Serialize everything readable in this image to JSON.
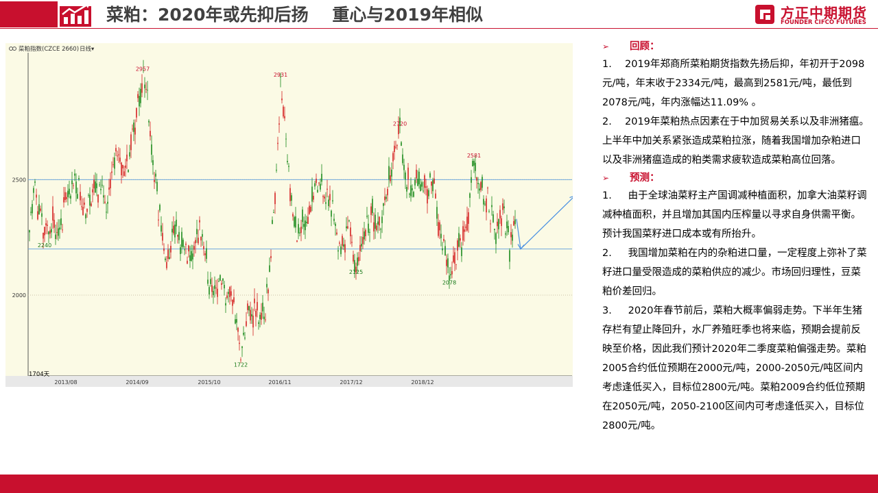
{
  "header": {
    "title": "菜粕：2020年或先抑后扬    重心与2019年相似",
    "logo_cn": "方正中期期货",
    "logo_en": "FOUNDER CIFCO FUTURES",
    "accent_color": "#c8102e"
  },
  "chart_toolbar": {
    "name": "菜粕指数(CZCE 2660)",
    "period": "日线",
    "period_caret": "▾",
    "day_count": "1704天"
  },
  "chart_data": {
    "type": "candlestick",
    "title": "菜粕指数(CZCE 2660)",
    "ylim": [
      1650,
      3050
    ],
    "y_ticks": [
      2000,
      2500
    ],
    "x_ticks": [
      "2013/08",
      "2014/09",
      "2015/10",
      "2016/11",
      "2017/12",
      "2018/12"
    ],
    "horizontal_lines": [
      2500,
      2200
    ],
    "annotated_extremes": [
      {
        "label": "2957",
        "value": 2957,
        "kind": "high",
        "date": "2014/05"
      },
      {
        "label": "2240",
        "value": 2240,
        "kind": "low",
        "date": "2013/06"
      },
      {
        "label": "2931",
        "value": 2931,
        "kind": "high",
        "date": "2016/06"
      },
      {
        "label": "1722",
        "value": 1722,
        "kind": "low",
        "date": "2015/09"
      },
      {
        "label": "2125",
        "value": 2125,
        "kind": "low",
        "date": "2017/03"
      },
      {
        "label": "2720",
        "value": 2720,
        "kind": "high",
        "date": "2018/04"
      },
      {
        "label": "2078",
        "value": 2078,
        "kind": "low",
        "date": "2019/03"
      },
      {
        "label": "2581",
        "value": 2581,
        "kind": "high",
        "date": "2019/05"
      }
    ],
    "outline": [
      [
        0,
        2330
      ],
      [
        8,
        2480
      ],
      [
        12,
        2380
      ],
      [
        22,
        2240
      ],
      [
        32,
        2330
      ],
      [
        40,
        2260
      ],
      [
        55,
        2450
      ],
      [
        68,
        2480
      ],
      [
        82,
        2350
      ],
      [
        100,
        2480
      ],
      [
        112,
        2420
      ],
      [
        125,
        2600
      ],
      [
        140,
        2550
      ],
      [
        152,
        2700
      ],
      [
        165,
        2957
      ],
      [
        172,
        2880
      ],
      [
        182,
        2500
      ],
      [
        192,
        2300
      ],
      [
        200,
        2120
      ],
      [
        212,
        2300
      ],
      [
        222,
        2200
      ],
      [
        236,
        2150
      ],
      [
        248,
        2300
      ],
      [
        262,
        2060
      ],
      [
        276,
        2050
      ],
      [
        290,
        2000
      ],
      [
        300,
        1950
      ],
      [
        308,
        1722
      ],
      [
        318,
        1900
      ],
      [
        330,
        1930
      ],
      [
        342,
        1880
      ],
      [
        352,
        2180
      ],
      [
        360,
        2550
      ],
      [
        366,
        2931
      ],
      [
        374,
        2700
      ],
      [
        382,
        2400
      ],
      [
        392,
        2250
      ],
      [
        404,
        2350
      ],
      [
        414,
        2420
      ],
      [
        426,
        2500
      ],
      [
        440,
        2380
      ],
      [
        454,
        2180
      ],
      [
        464,
        2300
      ],
      [
        476,
        2125
      ],
      [
        488,
        2280
      ],
      [
        498,
        2350
      ],
      [
        512,
        2330
      ],
      [
        524,
        2480
      ],
      [
        534,
        2650
      ],
      [
        540,
        2720
      ],
      [
        548,
        2500
      ],
      [
        560,
        2480
      ],
      [
        574,
        2450
      ],
      [
        588,
        2500
      ],
      [
        600,
        2250
      ],
      [
        612,
        2078
      ],
      [
        622,
        2200
      ],
      [
        636,
        2250
      ],
      [
        648,
        2581
      ],
      [
        656,
        2470
      ],
      [
        668,
        2400
      ],
      [
        680,
        2250
      ],
      [
        690,
        2380
      ],
      [
        700,
        2200
      ],
      [
        708,
        2320
      ]
    ],
    "projection": [
      [
        710,
        2330
      ],
      [
        716,
        2200
      ],
      [
        795,
        2430
      ]
    ]
  },
  "panel": {
    "review_title": "回顾：",
    "review_items": [
      {
        "num": "1.",
        "text": "2019年郑商所菜粕期货指数先扬后抑，年初开于2098元/吨，年末收于2334元/吨，最高到2581元/吨，最低到2078元/吨，年内涨幅达11.09% 。"
      },
      {
        "num": "2.",
        "text": "2019年菜粕热点因素在于中加贸易关系以及非洲猪瘟。上半年中加关系紧张造成菜粕拉涨，随着我国增加杂粕进口以及非洲猪瘟造成的粕类需求疲软造成菜粕高位回落。"
      }
    ],
    "forecast_title": "预测：",
    "forecast_items": [
      {
        "num": "1.",
        "text": " 由于全球油菜籽主产国调减种植面积，加拿大油菜籽调减种植面积，并且增加其国内压榨量以寻求自身供需平衡。预计我国菜籽进口成本或有所抬升。"
      },
      {
        "num": "2.",
        "text": " 我国增加菜粕在内的杂粕进口量，一定程度上弥补了菜籽进口量受限造成的菜粕供应的减少。市场回归理性，豆菜粕价差回归。"
      },
      {
        "num": "3.",
        "text": " 2020年春节前后，菜粕大概率偏弱走势。下半年生猪存栏有望止降回升，水厂养殖旺季也将来临，预期会提前反映至价格，因此我们预计2020年二季度菜粕偏强走势。菜粕2005合约低位预期在2000元/吨，2000-2050元/吨区间内考虑逢低买入，目标位2800元/吨。菜粕2009合约低位预期在2050元/吨，2050-2100区间内可考虑逢低买入，目标位2800元/吨。"
      }
    ]
  }
}
